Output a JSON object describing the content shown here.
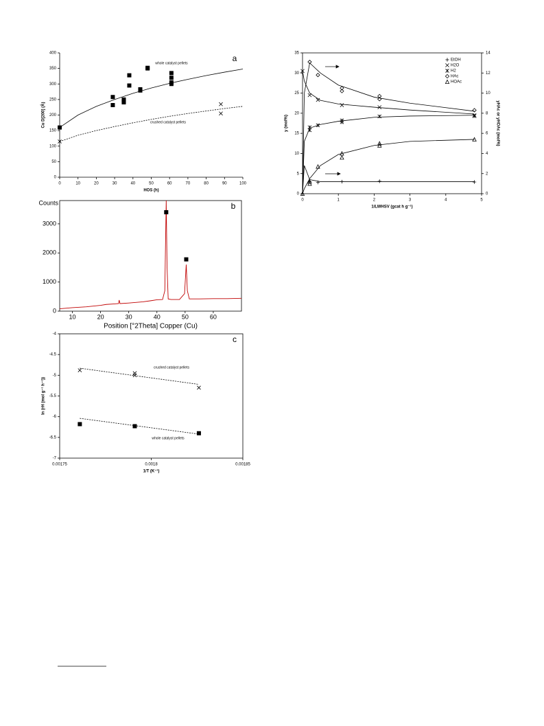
{
  "chart_data": [
    {
      "type": "scatter",
      "panel": "a",
      "xlabel": "HOS (h)",
      "ylabel": "Cu D[200] (Å)",
      "xlim": [
        0,
        100
      ],
      "xticks": [
        0,
        10,
        20,
        30,
        40,
        50,
        60,
        70,
        80,
        90,
        100
      ],
      "ylim": [
        0,
        400
      ],
      "yticks": [
        0,
        50,
        100,
        150,
        200,
        250,
        300,
        350,
        400
      ],
      "annotations": [
        "whole catalyst pellets",
        "crushed catalyst pellets"
      ],
      "series": [
        {
          "marker": "square",
          "color": "#000000",
          "x": [
            0,
            29,
            29,
            35,
            35,
            35,
            38,
            38,
            44,
            44,
            48,
            48,
            61,
            61,
            61,
            61
          ],
          "values": [
            160,
            258,
            232,
            250,
            245,
            241,
            328,
            295,
            283,
            279,
            352,
            350,
            335,
            320,
            305,
            300
          ]
        },
        {
          "marker": "x",
          "color": "#000000",
          "x": [
            0,
            88,
            88
          ],
          "values": [
            115,
            235,
            205
          ]
        },
        {
          "line": "solid",
          "color": "#000000",
          "x": [
            0,
            10,
            20,
            30,
            40,
            50,
            60,
            70,
            80,
            90,
            100
          ],
          "values": [
            160,
            200,
            228,
            250,
            270,
            287,
            302,
            315,
            327,
            338,
            348
          ]
        },
        {
          "line": "dashed",
          "color": "#000000",
          "x": [
            0,
            10,
            20,
            30,
            40,
            50,
            60,
            70,
            80,
            90,
            100
          ],
          "values": [
            115,
            135,
            150,
            163,
            175,
            186,
            196,
            205,
            213,
            221,
            228
          ]
        }
      ]
    },
    {
      "type": "line",
      "panel": "b",
      "xlabel": "Position [°2Theta] Copper (Cu)",
      "ylabel": "Counts",
      "xlim": [
        5.5,
        70
      ],
      "xticks": [
        10,
        20,
        30,
        40,
        50,
        60
      ],
      "ylim": [
        0,
        3800
      ],
      "yticks": [
        0,
        1000,
        2000,
        3000
      ],
      "series": [
        {
          "line": "solid",
          "color": "#c00000",
          "x": [
            5.5,
            10,
            15,
            20,
            22,
            25,
            26.4,
            26.6,
            26.9,
            30,
            35,
            38,
            40,
            42,
            42.8,
            43.3,
            43.6,
            44,
            45,
            48,
            49.8,
            50.4,
            50.8,
            51.5,
            55,
            60,
            65,
            70
          ],
          "values": [
            80,
            120,
            150,
            200,
            230,
            250,
            260,
            380,
            260,
            280,
            320,
            360,
            390,
            400,
            700,
            3800,
            1500,
            420,
            400,
            400,
            600,
            1600,
            700,
            420,
            420,
            430,
            430,
            440
          ]
        },
        {
          "marker": "square",
          "color": "#000000",
          "x": [
            43.3,
            50.4
          ],
          "values": [
            3400,
            1780
          ]
        }
      ]
    },
    {
      "type": "scatter",
      "panel": "c",
      "xlabel": "1/T (K⁻¹)",
      "ylabel": "ln (rH (mol g⁻¹ h⁻¹))",
      "xlim": [
        0.00175,
        0.00185
      ],
      "xticks": [
        0.00175,
        0.0018,
        0.00185
      ],
      "ylim": [
        -7,
        -4
      ],
      "yticks": [
        -7,
        -6.5,
        -6,
        -5.5,
        -5,
        -4.5,
        -4
      ],
      "annotations": [
        "crushed catalyst pellets",
        "whole catalyst pellets"
      ],
      "series": [
        {
          "marker": "x",
          "color": "#000000",
          "x": [
            0.001761,
            0.001791,
            0.001791,
            0.001826
          ],
          "values": [
            -4.88,
            -4.95,
            -5.0,
            -5.3
          ]
        },
        {
          "marker": "square",
          "color": "#000000",
          "x": [
            0.001761,
            0.001791,
            0.001826
          ],
          "values": [
            -6.18,
            -6.23,
            -6.4
          ]
        },
        {
          "line": "dashed",
          "color": "#000000",
          "x": [
            0.001761,
            0.001826
          ],
          "values": [
            -4.83,
            -5.22
          ]
        },
        {
          "line": "dashed",
          "color": "#000000",
          "x": [
            0.001761,
            0.001826
          ],
          "values": [
            -6.04,
            -6.42
          ]
        }
      ]
    },
    {
      "type": "scatter",
      "xlabel": "1/LWHSV (gcat h g⁻¹)",
      "ylabel": "y (mol%)",
      "y2label": "yHAc or yHOAc (mol%)",
      "xlim": [
        0,
        5
      ],
      "xticks": [
        0,
        1,
        2,
        3,
        4,
        5
      ],
      "ylim": [
        0,
        35
      ],
      "yticks": [
        0,
        5,
        10,
        15,
        20,
        25,
        30,
        35
      ],
      "y2lim": [
        0,
        14
      ],
      "y2ticks": [
        0,
        2,
        4,
        6,
        8,
        10,
        12,
        14
      ],
      "legend": "upper right",
      "series": [
        {
          "name": "EtOH",
          "marker": "plus",
          "color": "#000000",
          "x": [
            0.2,
            0.43,
            1.1,
            2.15,
            4.8
          ],
          "values": [
            3,
            2.8,
            3.0,
            3.1,
            2.9
          ]
        },
        {
          "name": "H2O",
          "marker": "x",
          "color": "#000000",
          "x": [
            0,
            0.2,
            0.43,
            1.1,
            2.15,
            4.8
          ],
          "values": [
            30.5,
            24.5,
            23.3,
            22,
            21.5,
            19.5
          ]
        },
        {
          "name": "H2",
          "marker": "asterisk",
          "color": "#000000",
          "x": [
            0.2,
            0.2,
            0.43,
            1.1,
            1.1,
            2.15,
            4.8
          ],
          "values": [
            16.5,
            15.8,
            17,
            17.8,
            18.2,
            19.2,
            19.3
          ]
        },
        {
          "name": "HAc",
          "marker": "diamond",
          "axis": "y2",
          "color": "#000000",
          "x": [
            0.2,
            0.43,
            1.1,
            1.1,
            2.15,
            2.15,
            4.8
          ],
          "values": [
            13.1,
            11.8,
            10.5,
            10.2,
            9.7,
            9.4,
            8.3
          ]
        },
        {
          "name": "HOAc",
          "marker": "triangle",
          "axis": "y2",
          "color": "#000000",
          "x": [
            0,
            0.2,
            0.2,
            0.43,
            1.1,
            1.1,
            2.15,
            2.15,
            4.8
          ],
          "values": [
            0,
            1.0,
            1.2,
            2.7,
            4.0,
            3.6,
            4.8,
            5.0,
            5.4
          ]
        },
        {
          "line": "solid",
          "color": "#000000",
          "x": [
            0,
            0.05,
            0.2,
            0.5,
            1,
            2,
            3,
            4.8
          ],
          "values": [
            0,
            7,
            3.5,
            3,
            3,
            3,
            3,
            3
          ]
        },
        {
          "line": "solid",
          "color": "#000000",
          "x": [
            0,
            0.05,
            0.2,
            0.5,
            1,
            2,
            3,
            4.8
          ],
          "values": [
            30.5,
            28,
            25,
            23.2,
            22.3,
            21.5,
            20.8,
            19.8
          ]
        },
        {
          "line": "solid",
          "color": "#000000",
          "x": [
            0,
            0.05,
            0.2,
            0.5,
            1,
            2,
            3,
            4.8
          ],
          "values": [
            0,
            13,
            16.3,
            17.2,
            18,
            19,
            19.3,
            19.5
          ]
        },
        {
          "line": "solid",
          "axis": "y2",
          "color": "#000000",
          "x": [
            0,
            0.05,
            0.2,
            0.5,
            1,
            2,
            3,
            4.8
          ],
          "values": [
            0,
            10,
            13,
            12,
            10.8,
            9.6,
            9,
            8.2
          ]
        },
        {
          "line": "solid",
          "axis": "y2",
          "color": "#000000",
          "x": [
            0,
            0.05,
            0.2,
            0.5,
            1,
            2,
            3,
            4.8
          ],
          "values": [
            0,
            0.5,
            1.5,
            2.8,
            3.9,
            4.8,
            5.2,
            5.4
          ]
        }
      ]
    }
  ]
}
